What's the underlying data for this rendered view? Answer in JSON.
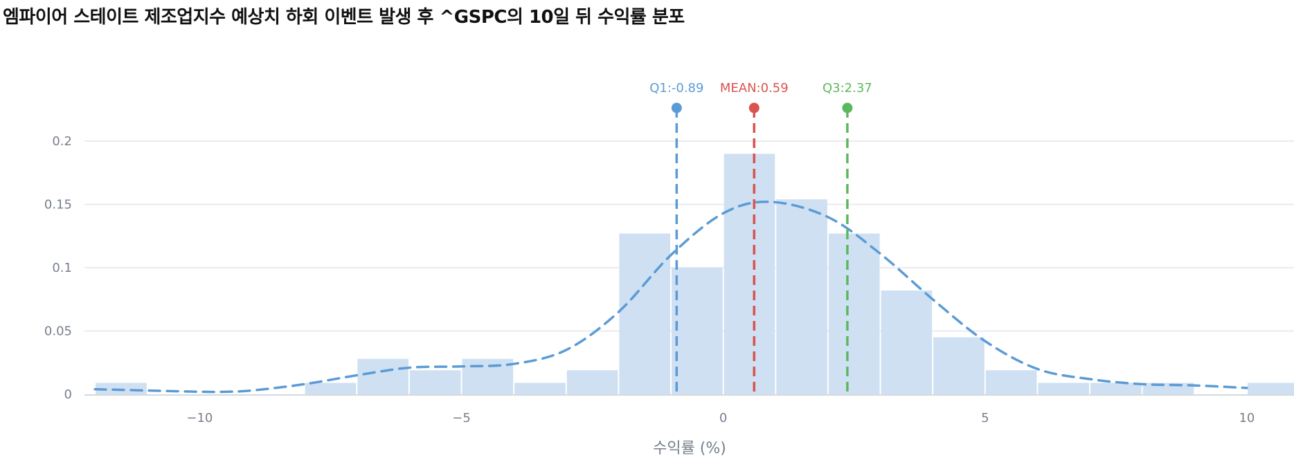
{
  "chart_data": {
    "type": "bar",
    "title": "엠파이어 스테이트 제조업지수 예상치 하회 이벤트 발생 후 ^GSPC의 10일 뒤 수익률 분포",
    "xlabel": "수익률 (%)",
    "ylabel": "",
    "xlim": [
      -12.2,
      10.9
    ],
    "ylim": [
      0,
      0.2
    ],
    "x_ticks": [
      {
        "value": -10,
        "label": "−10"
      },
      {
        "value": -5,
        "label": "−5"
      },
      {
        "value": 0,
        "label": "0"
      },
      {
        "value": 5,
        "label": "5"
      },
      {
        "value": 10,
        "label": "10"
      }
    ],
    "y_ticks": [
      {
        "value": 0,
        "label": "0"
      },
      {
        "value": 0.05,
        "label": "0.05"
      },
      {
        "value": 0.1,
        "label": "0.1"
      },
      {
        "value": 0.15,
        "label": "0.15"
      },
      {
        "value": 0.2,
        "label": "0.2"
      }
    ],
    "grid": true,
    "histogram": {
      "color": "#cfe0f2",
      "bins": [
        {
          "x0": -12,
          "x1": -11,
          "density": 0.009
        },
        {
          "x0": -8,
          "x1": -7,
          "density": 0.009
        },
        {
          "x0": -7,
          "x1": -6,
          "density": 0.028
        },
        {
          "x0": -6,
          "x1": -5,
          "density": 0.019
        },
        {
          "x0": -5,
          "x1": -4,
          "density": 0.028
        },
        {
          "x0": -4,
          "x1": -3,
          "density": 0.009
        },
        {
          "x0": -3,
          "x1": -2,
          "density": 0.019
        },
        {
          "x0": -2,
          "x1": -1,
          "density": 0.127
        },
        {
          "x0": -1,
          "x1": 0,
          "density": 0.1
        },
        {
          "x0": 0,
          "x1": 1,
          "density": 0.19
        },
        {
          "x0": 1,
          "x1": 2,
          "density": 0.154
        },
        {
          "x0": 2,
          "x1": 3,
          "density": 0.127
        },
        {
          "x0": 3,
          "x1": 4,
          "density": 0.082
        },
        {
          "x0": 4,
          "x1": 5,
          "density": 0.045
        },
        {
          "x0": 5,
          "x1": 6,
          "density": 0.019
        },
        {
          "x0": 6,
          "x1": 7,
          "density": 0.009
        },
        {
          "x0": 7,
          "x1": 8,
          "density": 0.009
        },
        {
          "x0": 8,
          "x1": 9,
          "density": 0.009
        },
        {
          "x0": 10,
          "x1": 11,
          "density": 0.009
        }
      ]
    },
    "kde": {
      "color": "#5b9bd5",
      "points": [
        [
          -12,
          0.004
        ],
        [
          -11,
          0.003
        ],
        [
          -10,
          0.002
        ],
        [
          -9.5,
          0.002
        ],
        [
          -9,
          0.003
        ],
        [
          -8,
          0.008
        ],
        [
          -7,
          0.015
        ],
        [
          -6,
          0.021
        ],
        [
          -5,
          0.022
        ],
        [
          -4,
          0.024
        ],
        [
          -3,
          0.035
        ],
        [
          -2,
          0.065
        ],
        [
          -1,
          0.11
        ],
        [
          0,
          0.143
        ],
        [
          0.9,
          0.152
        ],
        [
          2,
          0.14
        ],
        [
          3,
          0.111
        ],
        [
          4,
          0.075
        ],
        [
          5,
          0.042
        ],
        [
          6,
          0.02
        ],
        [
          7,
          0.012
        ],
        [
          8,
          0.008
        ],
        [
          9,
          0.007
        ],
        [
          10,
          0.005
        ]
      ]
    },
    "markers": [
      {
        "name": "Q1",
        "label": "Q1:-0.89",
        "value": -0.89,
        "color": "#5b9bd5"
      },
      {
        "name": "MEAN",
        "label": "MEAN:0.59",
        "value": 0.59,
        "color": "#d9534f"
      },
      {
        "name": "Q3",
        "label": "Q3:2.37",
        "value": 2.37,
        "color": "#5cb85c"
      }
    ]
  }
}
